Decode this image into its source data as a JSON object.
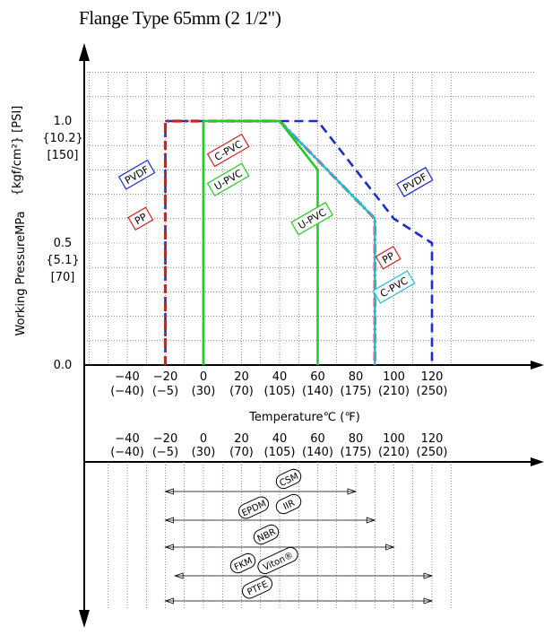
{
  "title": "Flange Type 65mm (2 1/2\")",
  "y_axis": {
    "label_a": "Working PressureMPa",
    "label_b": "{kgf/cm²} [PSI]",
    "ticks": [
      {
        "v": 0.0,
        "lines": [
          "0.0"
        ]
      },
      {
        "v": 0.5,
        "lines": [
          "0.5",
          "{5.1}",
          "[70]"
        ]
      },
      {
        "v": 1.0,
        "lines": [
          "1.0",
          "{10.2}",
          "[150]"
        ]
      }
    ]
  },
  "x_axis": {
    "label": "Temperature℃ (℉)",
    "ticks": [
      {
        "c": "−40",
        "f": "(−40)",
        "v": -40
      },
      {
        "c": "−20",
        "f": "(−5)",
        "v": -20
      },
      {
        "c": "0",
        "f": "(30)",
        "v": 0
      },
      {
        "c": "20",
        "f": "(70)",
        "v": 20
      },
      {
        "c": "40",
        "f": "(105)",
        "v": 40
      },
      {
        "c": "60",
        "f": "(140)",
        "v": 60
      },
      {
        "c": "80",
        "f": "(175)",
        "v": 80
      },
      {
        "c": "100",
        "f": "(210)",
        "v": 100
      },
      {
        "c": "120",
        "f": "(250)",
        "v": 120
      }
    ]
  },
  "chart_data": {
    "type": "line",
    "title": "Flange Type 65mm (2 1/2\")",
    "xlabel": "Temperature℃ (℉)",
    "ylabel": "Working PressureMPa {kgf/cm²} [PSI]",
    "xlim": [
      -50,
      130
    ],
    "ylim": [
      0,
      1.25
    ],
    "grid": true,
    "series": [
      {
        "name": "PVDF",
        "color": "#1a2ccc",
        "dash": "dash",
        "points": [
          [
            -20,
            0
          ],
          [
            -20,
            1.0
          ],
          [
            60,
            1.0
          ],
          [
            100,
            0.6
          ],
          [
            120,
            0.5
          ],
          [
            120,
            0
          ]
        ]
      },
      {
        "name": "PP",
        "color": "#d02020",
        "dash": "dashdot",
        "points": [
          [
            -20,
            0
          ],
          [
            -20,
            1.0
          ],
          [
            40,
            1.0
          ],
          [
            90,
            0.6
          ],
          [
            90,
            0
          ]
        ]
      },
      {
        "name": "C-PVC",
        "color": "#22bbdd",
        "dash": "solid",
        "points": [
          [
            0,
            0
          ],
          [
            0,
            1.0
          ],
          [
            40,
            1.0
          ],
          [
            90,
            0.6
          ],
          [
            90,
            0
          ]
        ]
      },
      {
        "name": "U-PVC",
        "color": "#22cc22",
        "dash": "solid",
        "points": [
          [
            0,
            0
          ],
          [
            0,
            1.0
          ],
          [
            40,
            1.0
          ],
          [
            60,
            0.8
          ],
          [
            60,
            0
          ]
        ]
      }
    ],
    "tags": [
      {
        "text": "PVDF",
        "color": "#1a2ccc",
        "x": -35,
        "y": 0.78
      },
      {
        "text": "PP",
        "color": "#d02020",
        "x": -33,
        "y": 0.6
      },
      {
        "text": "C-PVC",
        "color": "#d02020",
        "x": 13,
        "y": 0.88
      },
      {
        "text": "U-PVC",
        "color": "#22cc22",
        "x": 13,
        "y": 0.76
      },
      {
        "text": "U-PVC",
        "color": "#22cc22",
        "x": 57,
        "y": 0.6
      },
      {
        "text": "PVDF",
        "color": "#1a2ccc",
        "x": 111,
        "y": 0.75
      },
      {
        "text": "PP",
        "color": "#d02020",
        "x": 97,
        "y": 0.44
      },
      {
        "text": "C-PVC",
        "color": "#22bbdd",
        "x": 100,
        "y": 0.32
      }
    ],
    "seal_ranges": [
      {
        "text": "CSM",
        "x_min": -20,
        "x_max": 80
      },
      {
        "text": "EPDM",
        "x_min": -20,
        "x_max": 90
      },
      {
        "text": "IIR",
        "x_min": -20,
        "x_max": 90
      },
      {
        "text": "NBR",
        "x_min": -20,
        "x_max": 100
      },
      {
        "text": "FKM",
        "x_min": -15,
        "x_max": 120
      },
      {
        "text": "Viton®",
        "x_min": -15,
        "x_max": 120
      },
      {
        "text": "PTFE",
        "x_min": -20,
        "x_max": 120
      }
    ]
  }
}
